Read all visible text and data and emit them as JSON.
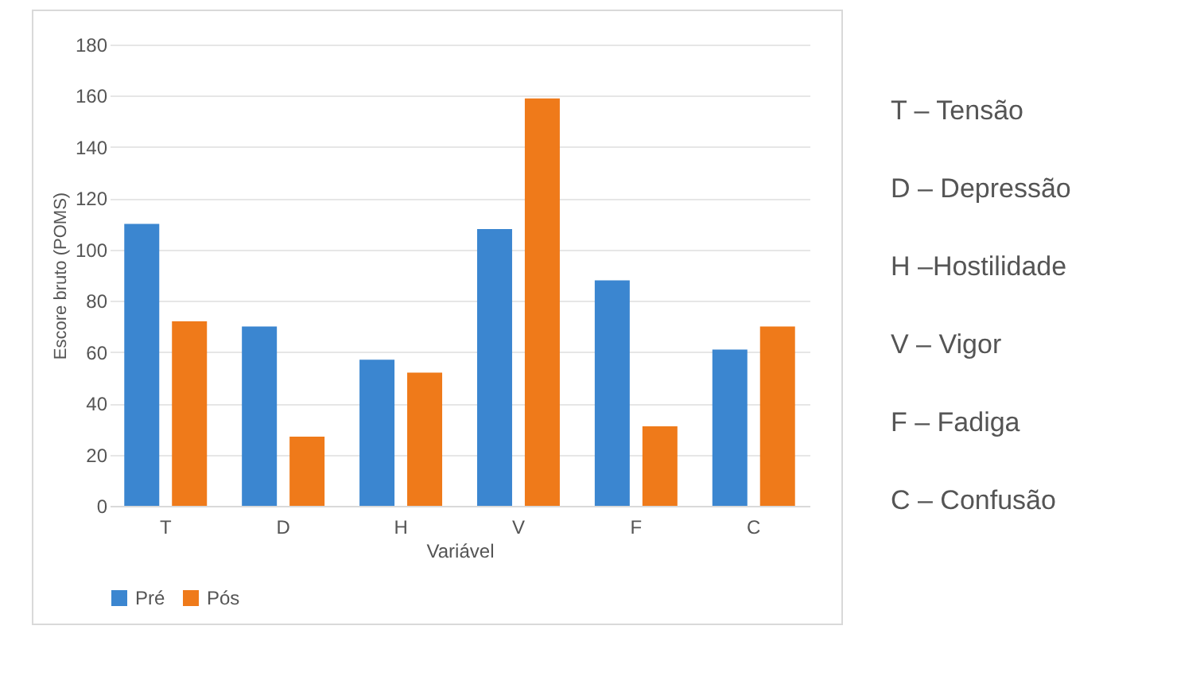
{
  "chart_data": {
    "type": "bar",
    "xlabel": "Variável",
    "ylabel": "Escore bruto (POMS)",
    "categories": [
      "T",
      "D",
      "H",
      "V",
      "F",
      "C"
    ],
    "series": [
      {
        "name": "Pré",
        "color": "#3b86d0",
        "values": [
          110,
          70,
          57,
          108,
          88,
          61
        ]
      },
      {
        "name": "Pós",
        "color": "#ef7a1a",
        "values": [
          72,
          27,
          52,
          159,
          31,
          70
        ]
      }
    ],
    "ylim": [
      0,
      180
    ],
    "yticks": [
      0,
      20,
      40,
      60,
      80,
      100,
      120,
      140,
      160,
      180
    ],
    "grid": "y",
    "legend": "bottom",
    "annotations": [
      "T – Tensão",
      "D – Depressão",
      "H –Hostilidade",
      "V – Vigor",
      "F – Fadiga",
      "C – Confusão"
    ]
  }
}
